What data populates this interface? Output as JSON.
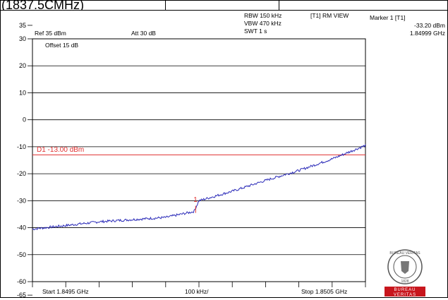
{
  "header": {
    "left_cell_text": "(1837.5CMHz)"
  },
  "instrument": {
    "ref_level": "Ref 35 dBm",
    "attenuation": "Att 30 dB",
    "offset": "Offset 15 dB",
    "rbw": "RBW 150 kHz",
    "vbw": "VBW 470 kHz",
    "swt": "SWT 1 s",
    "trace_mode": "[T1] RM VIEW",
    "marker_title": "Marker 1 [T1]",
    "marker_level": "-33.20 dBm",
    "marker_freq": "1.84999 GHz",
    "start": "Start 1.8495 GHz",
    "span_div": "100 kHz/",
    "stop": "Stop 1.8505 GHz"
  },
  "logo": {
    "ring_text": "BUREAU VERITAS",
    "year": "1828",
    "bar_line1": "BUREAU",
    "bar_line2": "VERITAS"
  },
  "chart_data": {
    "type": "line",
    "x_unit": "GHz",
    "xlim": [
      1.8495,
      1.8505
    ],
    "ylim": [
      -65,
      35
    ],
    "y_ticks": [
      35,
      30,
      20,
      10,
      0,
      -10,
      -20,
      -30,
      -40,
      -50,
      -60,
      -65
    ],
    "y_tick_labels": [
      "35",
      "30",
      "20",
      "10",
      "0",
      "-10",
      "-20",
      "-30",
      "-40",
      "-50",
      "-60",
      "-65"
    ],
    "grid": true,
    "display_line": {
      "label": "D1 -13.00 dBm",
      "value": -13.0,
      "color": "#e03030"
    },
    "marker": {
      "label": "1",
      "x": 1.84999,
      "y": -33.2,
      "color": "#e03030"
    },
    "series": [
      {
        "color": "#2a2ab8",
        "x": [
          1.8495,
          1.8496,
          1.8497,
          1.8498,
          1.8499,
          1.849985,
          1.85,
          1.8501,
          1.8502,
          1.8503,
          1.8504,
          1.8505
        ],
        "y": [
          -40.5,
          -39.2,
          -37.8,
          -37.0,
          -36.2,
          -34.0,
          -30.0,
          -26.5,
          -22.5,
          -18.8,
          -14.5,
          -9.5
        ]
      }
    ]
  }
}
